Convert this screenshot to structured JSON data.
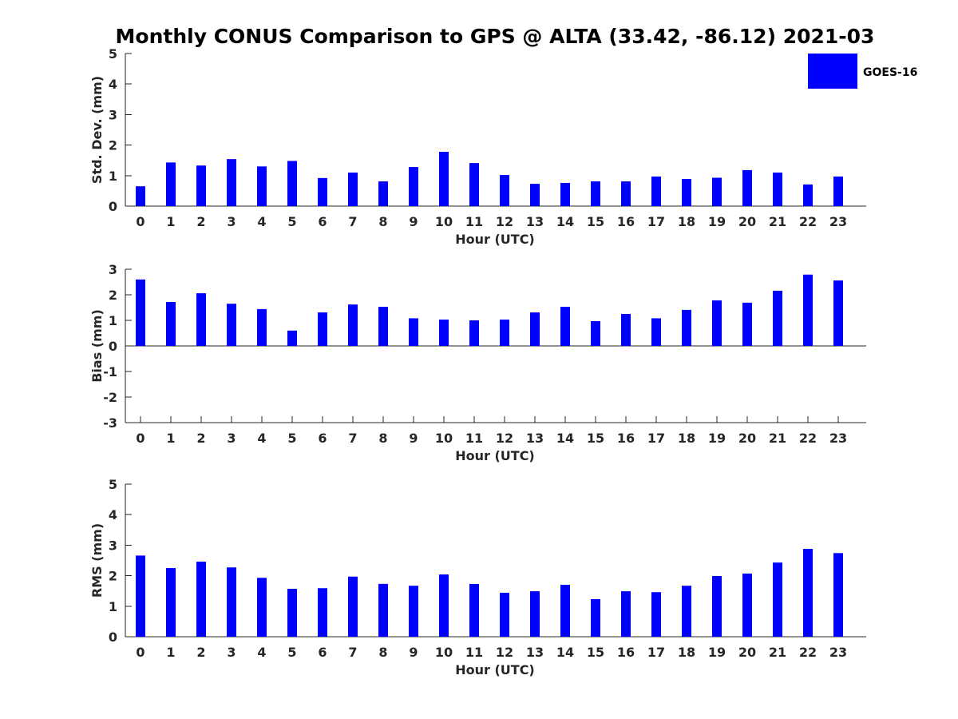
{
  "chart_title": "Monthly CONUS Comparison to GPS @ ALTA (33.42, -86.12) 2021-03",
  "legend": {
    "label": "GOES-16",
    "color": "#0000ff",
    "placement": "top-right"
  },
  "chart_data": [
    {
      "type": "bar",
      "title": "Monthly CONUS Comparison to GPS @ ALTA (33.42, -86.12) 2021-03",
      "xlabel": "Hour (UTC)",
      "ylabel": "Std. Dev. (mm)",
      "ylim": [
        0,
        5
      ],
      "yticks": [
        0,
        1,
        2,
        3,
        4,
        5
      ],
      "categories": [
        "0",
        "1",
        "2",
        "3",
        "4",
        "5",
        "6",
        "7",
        "8",
        "9",
        "10",
        "11",
        "12",
        "13",
        "14",
        "15",
        "16",
        "17",
        "18",
        "19",
        "20",
        "21",
        "22",
        "23"
      ],
      "series": [
        {
          "name": "GOES-16",
          "color": "#0000ff",
          "values": [
            0.65,
            1.43,
            1.33,
            1.54,
            1.3,
            1.48,
            0.92,
            1.1,
            0.81,
            1.28,
            1.78,
            1.41,
            1.02,
            0.73,
            0.76,
            0.81,
            0.81,
            0.97,
            0.89,
            0.93,
            1.18,
            1.1,
            0.71,
            0.97
          ]
        }
      ],
      "grid": false
    },
    {
      "type": "bar",
      "title": "",
      "xlabel": "Hour (UTC)",
      "ylabel": "Bias (mm)",
      "ylim": [
        -3,
        3
      ],
      "yticks": [
        -3,
        -2,
        -1,
        0,
        1,
        2,
        3
      ],
      "categories": [
        "0",
        "1",
        "2",
        "3",
        "4",
        "5",
        "6",
        "7",
        "8",
        "9",
        "10",
        "11",
        "12",
        "13",
        "14",
        "15",
        "16",
        "17",
        "18",
        "19",
        "20",
        "21",
        "22",
        "23"
      ],
      "series": [
        {
          "name": "GOES-16",
          "color": "#0000ff",
          "values": [
            2.6,
            1.72,
            2.06,
            1.65,
            1.44,
            0.6,
            1.31,
            1.62,
            1.53,
            1.08,
            1.03,
            1.0,
            1.03,
            1.31,
            1.53,
            0.97,
            1.25,
            1.08,
            1.41,
            1.78,
            1.69,
            2.16,
            2.79,
            2.56
          ]
        }
      ],
      "grid": false
    },
    {
      "type": "bar",
      "title": "",
      "xlabel": "Hour (UTC)",
      "ylabel": "RMS (mm)",
      "ylim": [
        0,
        5
      ],
      "yticks": [
        0,
        1,
        2,
        3,
        4,
        5
      ],
      "categories": [
        "0",
        "1",
        "2",
        "3",
        "4",
        "5",
        "6",
        "7",
        "8",
        "9",
        "10",
        "11",
        "12",
        "13",
        "14",
        "15",
        "16",
        "17",
        "18",
        "19",
        "20",
        "21",
        "22",
        "23"
      ],
      "series": [
        {
          "name": "GOES-16",
          "color": "#0000ff",
          "values": [
            2.66,
            2.25,
            2.46,
            2.27,
            1.93,
            1.57,
            1.59,
            1.97,
            1.73,
            1.67,
            2.04,
            1.73,
            1.44,
            1.49,
            1.7,
            1.23,
            1.49,
            1.46,
            1.67,
            1.99,
            2.07,
            2.43,
            2.88,
            2.74
          ]
        }
      ],
      "grid": false
    }
  ]
}
